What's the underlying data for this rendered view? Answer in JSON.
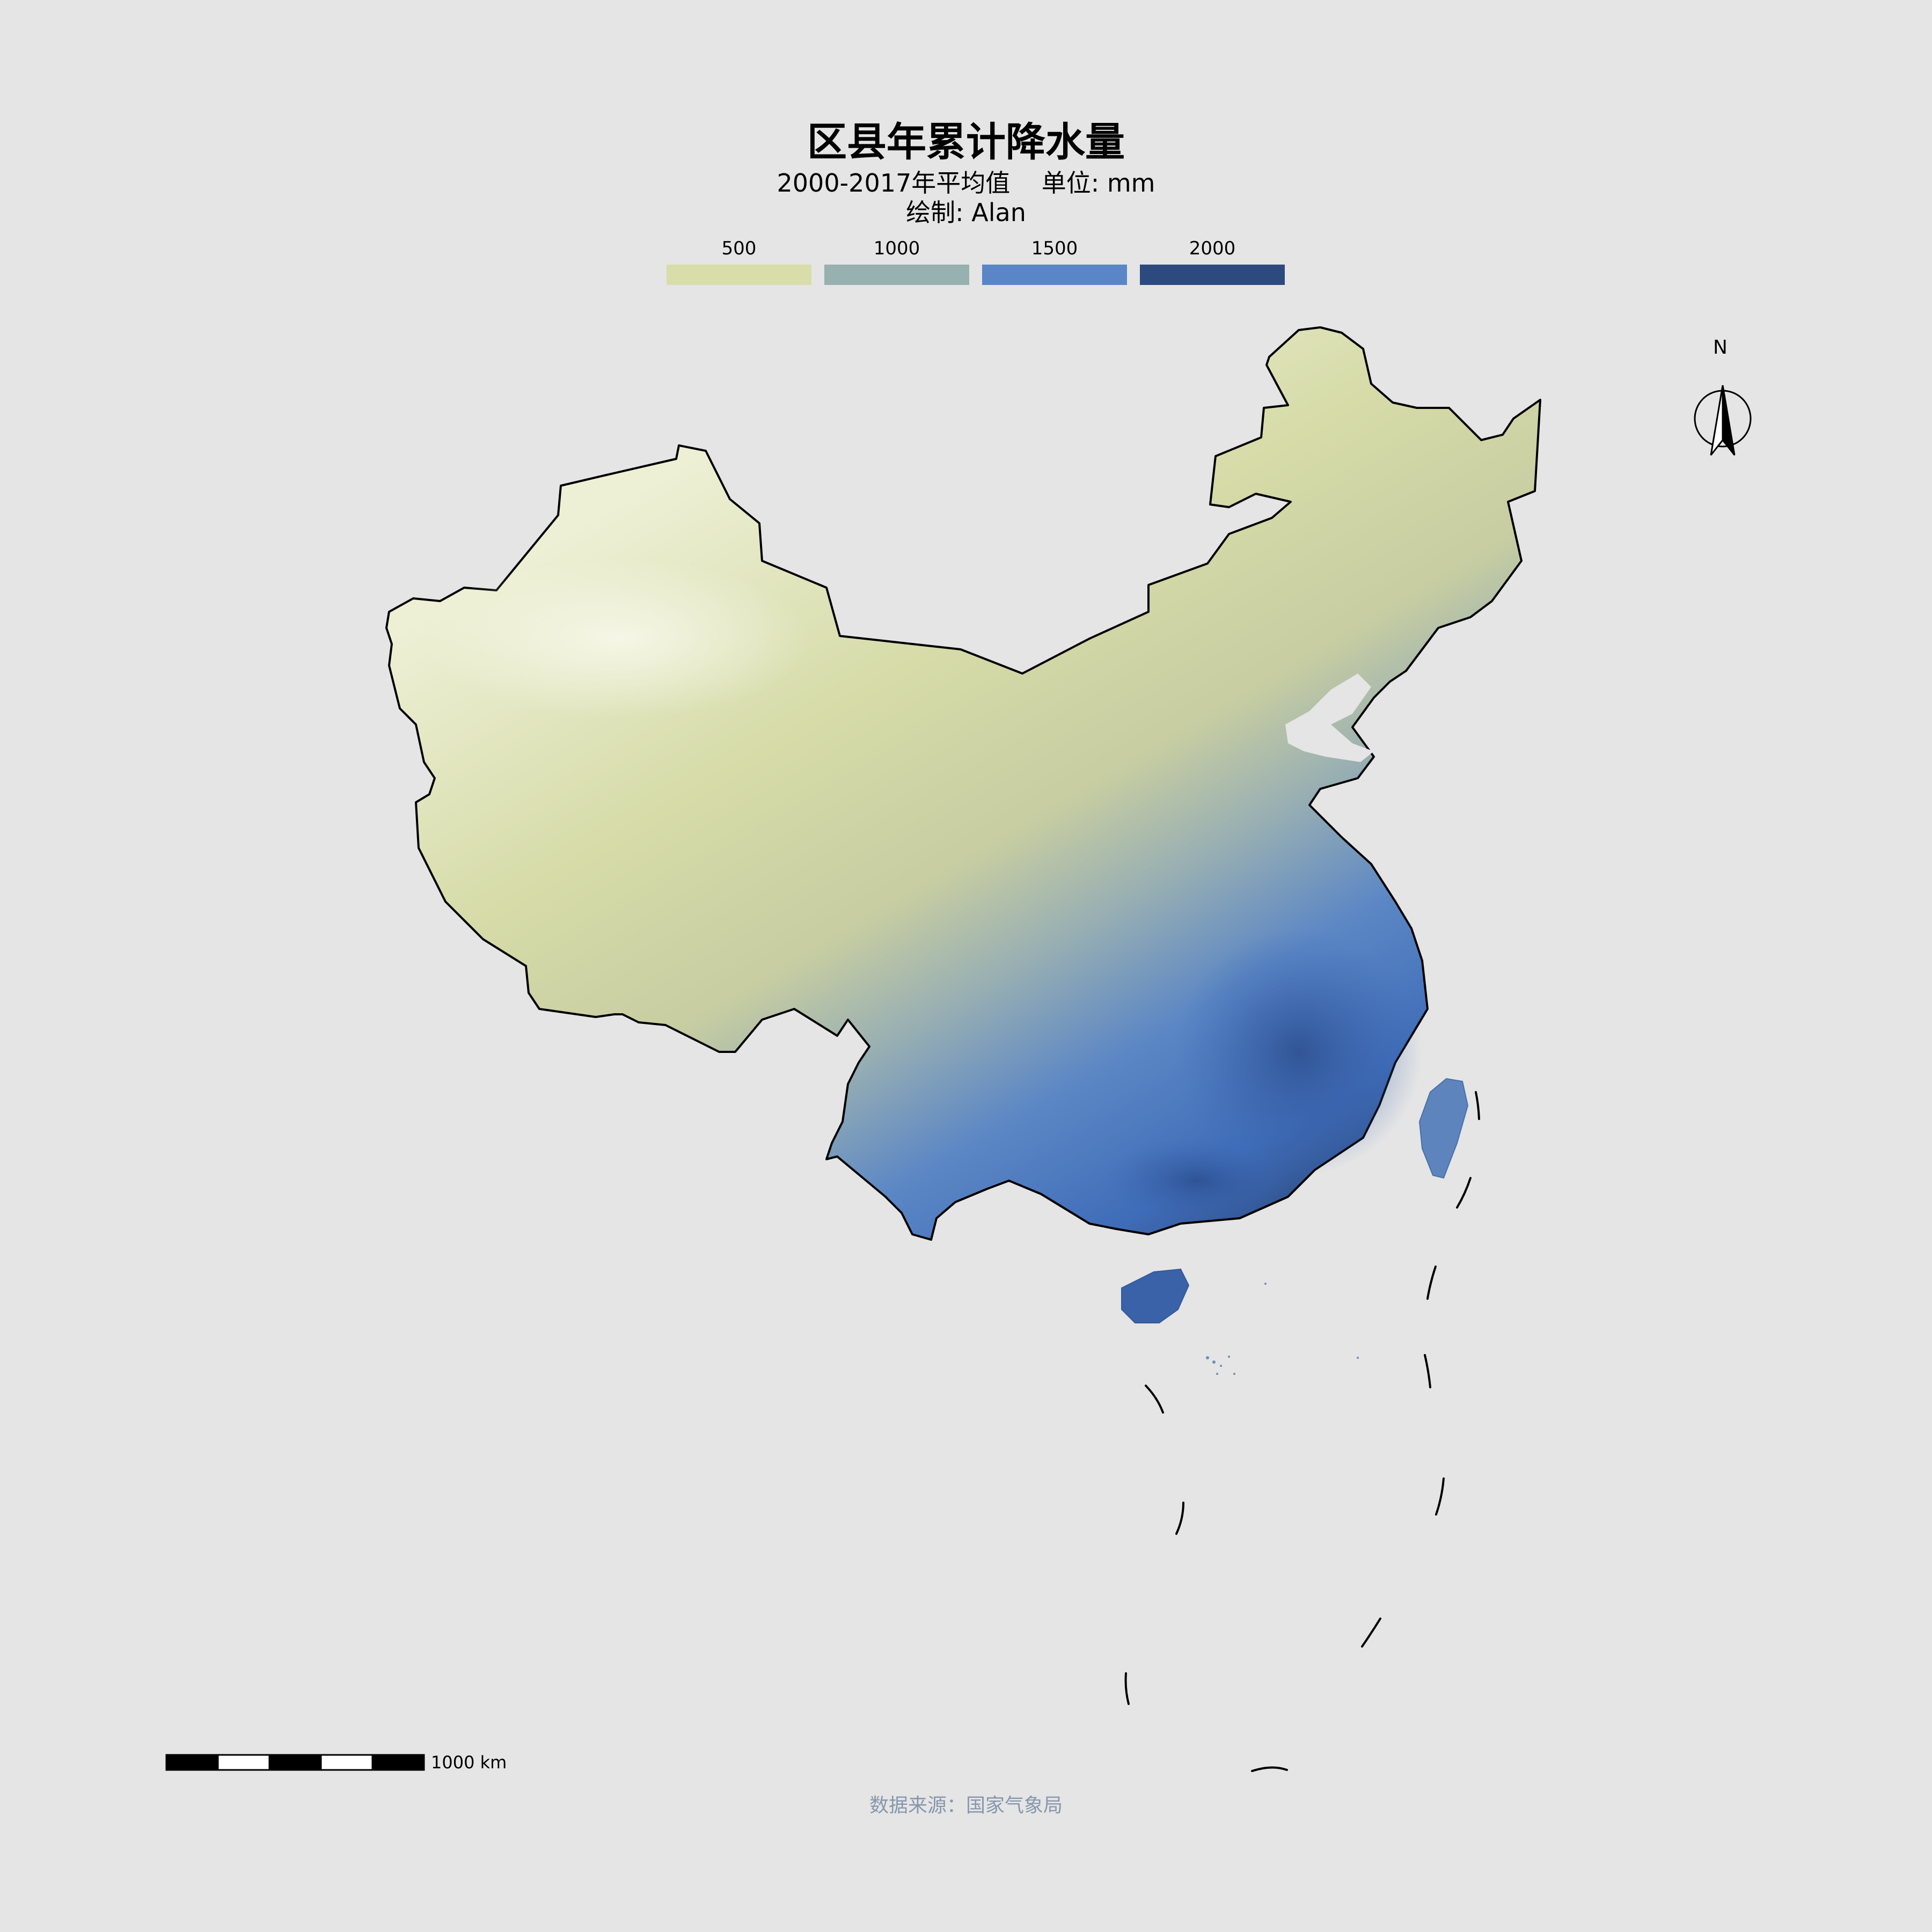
{
  "title": "区县年累计降水量",
  "subtitle": "2000-2017年平均值    单位: mm",
  "caption": "绘制: Alan",
  "legend": [
    {
      "label": "500",
      "color": "#d9ddaa"
    },
    {
      "label": "1000",
      "color": "#97b0b0"
    },
    {
      "label": "1500",
      "color": "#5a86c8"
    },
    {
      "label": "2000",
      "color": "#2c4a7e"
    }
  ],
  "north_arrow": {
    "label": "N"
  },
  "scale_bar": {
    "label": "1000 km"
  },
  "source": "数据来源：国家气象局"
}
